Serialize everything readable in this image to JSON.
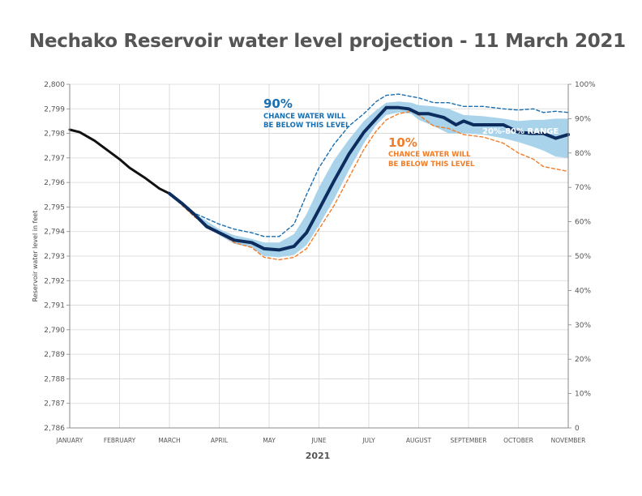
{
  "title": "Nechako Reservoir water level projection - 11 March 2021",
  "chart_data": {
    "type": "line",
    "title": "Nechako Reservoir water level projection - 11 March 2021",
    "xlabel": "2021",
    "ylabel": "Reservoir water level in feet",
    "y_unit": "feet",
    "ylim": [
      2786,
      2800
    ],
    "y_ticks": [
      "2,800",
      "2,799",
      "2,798",
      "2,797",
      "2,796",
      "2,795",
      "2,794",
      "2,793",
      "2,792",
      "2,791",
      "2,790",
      "2,789",
      "2,788",
      "2,787",
      "2,786"
    ],
    "y2_ticks": [
      "100%",
      "90%",
      "80%",
      "70%",
      "60%",
      "50%",
      "40%",
      "30%",
      "20%",
      "10%",
      "0"
    ],
    "x_month_labels": [
      "JANUARY",
      "FEBRUARY",
      "MARCH",
      "APRIL",
      "MAY",
      "JUNE",
      "JULY",
      "AUGUST",
      "SEPTEMBER",
      "OCTOBER",
      "NOVEMBER"
    ],
    "xlim_months": [
      0,
      10
    ],
    "grid": true,
    "x_unit": "month index (0 = January 1)",
    "series": [
      {
        "key": "observed",
        "color": "#111111",
        "x": [
          0,
          0.2,
          0.5,
          0.8,
          1,
          1.2,
          1.5,
          1.8,
          2
        ],
        "y": [
          2798.15,
          2798.05,
          2797.7,
          2797.25,
          2796.95,
          2796.6,
          2796.2,
          2795.75,
          2795.55
        ]
      },
      {
        "key": "median",
        "color": "#0d2d5e",
        "x": [
          2,
          2.25,
          2.5,
          2.75,
          3,
          3.3,
          3.65,
          3.9,
          4.2,
          4.5,
          4.75,
          5,
          5.3,
          5.6,
          5.9,
          6.15,
          6.35,
          6.6,
          6.8,
          7,
          7.2,
          7.5,
          7.75,
          7.9,
          8.1,
          8.4,
          8.7,
          9,
          9.25,
          9.5,
          9.75,
          10
        ],
        "y": [
          2795.55,
          2795.15,
          2794.7,
          2794.2,
          2793.95,
          2793.65,
          2793.55,
          2793.3,
          2793.25,
          2793.4,
          2793.95,
          2794.9,
          2796.05,
          2797.15,
          2798.05,
          2798.6,
          2799.05,
          2799.05,
          2799.0,
          2798.8,
          2798.8,
          2798.65,
          2798.35,
          2798.5,
          2798.35,
          2798.35,
          2798.35,
          2798.05,
          2798.0,
          2798.0,
          2797.8,
          2797.95
        ]
      },
      {
        "key": "p90",
        "color": "#1a6fb0",
        "x": [
          2,
          2.5,
          3,
          3.3,
          3.65,
          3.9,
          4.2,
          4.5,
          4.75,
          5,
          5.3,
          5.6,
          5.9,
          6.15,
          6.35,
          6.6,
          6.85,
          7,
          7.3,
          7.6,
          7.9,
          8.3,
          8.7,
          9,
          9.3,
          9.5,
          9.75,
          10
        ],
        "y": [
          2795.55,
          2794.75,
          2794.3,
          2794.1,
          2793.95,
          2793.8,
          2793.8,
          2794.3,
          2795.5,
          2796.6,
          2797.55,
          2798.3,
          2798.8,
          2799.3,
          2799.55,
          2799.6,
          2799.5,
          2799.45,
          2799.25,
          2799.25,
          2799.1,
          2799.1,
          2799.0,
          2798.95,
          2799.0,
          2798.85,
          2798.9,
          2798.85
        ]
      },
      {
        "key": "p10",
        "color": "#f07d2a",
        "x": [
          2,
          2.5,
          3,
          3.3,
          3.65,
          3.9,
          4.2,
          4.5,
          4.75,
          5,
          5.3,
          5.6,
          5.9,
          6.15,
          6.35,
          6.6,
          6.85,
          7,
          7.3,
          7.6,
          7.9,
          8.3,
          8.7,
          9,
          9.3,
          9.5,
          9.75,
          10
        ],
        "y": [
          2795.55,
          2794.6,
          2793.95,
          2793.55,
          2793.35,
          2792.95,
          2792.85,
          2792.95,
          2793.3,
          2794.1,
          2795.05,
          2796.2,
          2797.35,
          2798.1,
          2798.55,
          2798.8,
          2798.9,
          2798.75,
          2798.3,
          2798.2,
          2797.95,
          2797.85,
          2797.6,
          2797.2,
          2796.95,
          2796.65,
          2796.55,
          2796.45
        ]
      }
    ],
    "band_20_80": {
      "color": "#a9d3ea",
      "x": [
        2,
        2.5,
        3,
        3.3,
        3.65,
        3.9,
        4.2,
        4.5,
        4.75,
        5,
        5.3,
        5.6,
        5.9,
        6.15,
        6.35,
        6.6,
        6.85,
        7,
        7.3,
        7.6,
        7.9,
        8.3,
        8.7,
        9,
        9.3,
        9.5,
        9.75,
        10
      ],
      "upper": [
        2795.55,
        2794.75,
        2794.1,
        2793.85,
        2793.7,
        2793.55,
        2793.55,
        2793.9,
        2794.7,
        2795.8,
        2796.9,
        2797.75,
        2798.5,
        2798.95,
        2799.25,
        2799.3,
        2799.25,
        2799.15,
        2799.1,
        2799.0,
        2798.75,
        2798.7,
        2798.6,
        2798.5,
        2798.55,
        2798.55,
        2798.6,
        2798.6
      ],
      "lower": [
        2795.55,
        2794.65,
        2793.85,
        2793.5,
        2793.35,
        2793.0,
        2792.95,
        2793.05,
        2793.45,
        2794.25,
        2795.3,
        2796.5,
        2797.6,
        2798.35,
        2798.75,
        2798.85,
        2798.8,
        2798.55,
        2798.3,
        2798.0,
        2798.0,
        2797.95,
        2797.8,
        2797.65,
        2797.45,
        2797.3,
        2797.05,
        2797.0
      ]
    },
    "annotations": {
      "p90_pct": "90%",
      "p90_text_1": "CHANCE WATER WILL",
      "p90_text_2": "BE BELOW THIS LEVEL",
      "p10_pct": "10%",
      "p10_text_1": "CHANCE WATER WILL",
      "p10_text_2": "BE BELOW THIS LEVEL",
      "band_label": "20%-80% RANGE"
    },
    "colors": {
      "median": "#0d2d5e",
      "p90": "#1a6fb0",
      "p10": "#f07d2a",
      "band": "#a9d3ea",
      "observed": "#111111"
    }
  }
}
